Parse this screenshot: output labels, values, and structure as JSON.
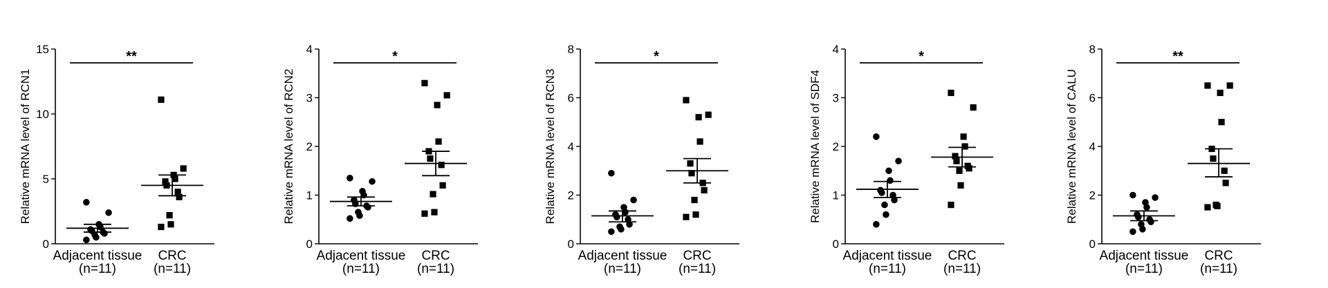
{
  "chart_data": [
    {
      "type": "scatter",
      "ylabel": "Relative mRNA level of RCN1",
      "ylim": [
        0,
        15
      ],
      "yticks": [
        "0",
        "5",
        "10",
        "15"
      ],
      "categories": [
        "Adjacent tissue",
        "CRC"
      ],
      "n_labels": [
        "(n=11)",
        "(n=11)"
      ],
      "significance": "**",
      "series": [
        {
          "values": [
            0.3,
            0.5,
            0.7,
            0.8,
            0.9,
            1.0,
            1.1,
            1.3,
            1.5,
            2.4,
            3.2
          ],
          "mean": 1.2,
          "sem_low": 0.9,
          "sem_high": 1.5
        },
        {
          "values": [
            1.3,
            1.5,
            2.2,
            3.6,
            4.0,
            4.5,
            4.8,
            5.0,
            5.3,
            5.8,
            11.1
          ],
          "mean": 4.5,
          "sem_low": 3.7,
          "sem_high": 5.3
        }
      ]
    },
    {
      "type": "scatter",
      "ylabel": "Relative mRNA level of RCN2",
      "ylim": [
        0,
        4
      ],
      "yticks": [
        "0",
        "1",
        "2",
        "3",
        "4"
      ],
      "categories": [
        "Adjacent tissue",
        "CRC"
      ],
      "n_labels": [
        "(n=11)",
        "(n=11)"
      ],
      "significance": "*",
      "series": [
        {
          "values": [
            0.52,
            0.58,
            0.65,
            0.75,
            0.78,
            0.82,
            0.9,
            1.0,
            1.08,
            1.28,
            1.35
          ],
          "mean": 0.87,
          "sem_low": 0.78,
          "sem_high": 0.96
        },
        {
          "values": [
            0.62,
            0.65,
            1.02,
            1.2,
            1.62,
            1.75,
            1.9,
            2.1,
            2.85,
            3.05,
            3.3
          ],
          "mean": 1.65,
          "sem_low": 1.4,
          "sem_high": 1.9
        }
      ]
    },
    {
      "type": "scatter",
      "ylabel": "Relative mRNA level of RCN3",
      "ylim": [
        0,
        8
      ],
      "yticks": [
        "0",
        "2",
        "4",
        "6",
        "8"
      ],
      "categories": [
        "Adjacent tissue",
        "CRC"
      ],
      "n_labels": [
        "(n=11)",
        "(n=11)"
      ],
      "significance": "*",
      "series": [
        {
          "values": [
            0.5,
            0.6,
            0.7,
            0.8,
            1.0,
            1.1,
            1.2,
            1.3,
            1.5,
            1.8,
            2.9
          ],
          "mean": 1.15,
          "sem_low": 0.9,
          "sem_high": 1.35
        },
        {
          "values": [
            1.1,
            1.2,
            1.8,
            2.2,
            2.5,
            2.9,
            3.3,
            4.2,
            5.2,
            5.3,
            5.9
          ],
          "mean": 3.0,
          "sem_low": 2.5,
          "sem_high": 3.5
        }
      ]
    },
    {
      "type": "scatter",
      "ylabel": "Relative mRNA level of SDF4",
      "ylim": [
        0,
        4
      ],
      "yticks": [
        "0",
        "1",
        "2",
        "3",
        "4"
      ],
      "categories": [
        "Adjacent tissue",
        "CRC"
      ],
      "n_labels": [
        "(n=11)",
        "(n=11)"
      ],
      "significance": "*",
      "series": [
        {
          "values": [
            0.4,
            0.6,
            0.8,
            0.9,
            1.0,
            1.05,
            1.1,
            1.3,
            1.5,
            1.7,
            2.2
          ],
          "mean": 1.12,
          "sem_low": 0.95,
          "sem_high": 1.28
        },
        {
          "values": [
            0.8,
            1.2,
            1.5,
            1.55,
            1.6,
            1.7,
            1.8,
            2.0,
            2.2,
            2.8,
            3.1
          ],
          "mean": 1.78,
          "sem_low": 1.58,
          "sem_high": 1.98
        }
      ]
    },
    {
      "type": "scatter",
      "ylabel": "Relative mRNA level of CALU",
      "ylim": [
        0,
        8
      ],
      "yticks": [
        "0",
        "2",
        "4",
        "6",
        "8"
      ],
      "categories": [
        "Adjacent tissue",
        "CRC"
      ],
      "n_labels": [
        "(n=11)",
        "(n=11)"
      ],
      "significance": "**",
      "series": [
        {
          "values": [
            0.5,
            0.6,
            0.8,
            0.9,
            1.0,
            1.1,
            1.2,
            1.5,
            1.7,
            1.9,
            2.0
          ],
          "mean": 1.15,
          "sem_low": 0.95,
          "sem_high": 1.35
        },
        {
          "values": [
            1.5,
            1.55,
            1.6,
            2.5,
            3.0,
            3.5,
            3.9,
            5.0,
            6.2,
            6.5,
            6.5
          ],
          "mean": 3.3,
          "sem_low": 2.75,
          "sem_high": 3.9
        }
      ]
    }
  ]
}
